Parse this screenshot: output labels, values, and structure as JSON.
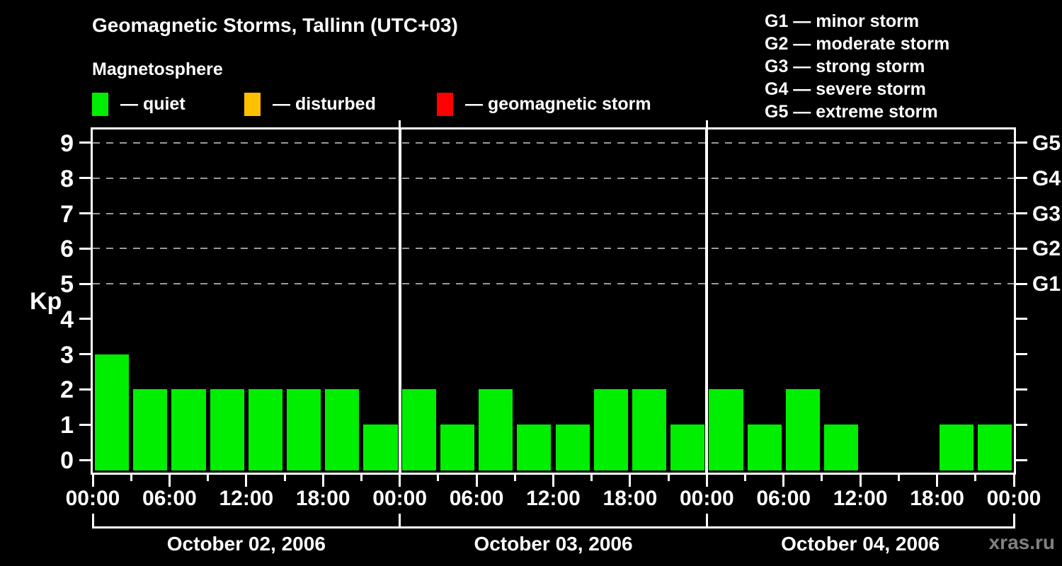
{
  "page": {
    "title": "Geomagnetic Storms, Tallinn (UTC+03)",
    "subtitle": "Magnetosphere",
    "watermark": "xras.ru"
  },
  "legend": {
    "items": [
      {
        "label": "— quiet",
        "color": "#00ee00"
      },
      {
        "label": "— disturbed",
        "color": "#ffc000"
      },
      {
        "label": "— geomagnetic storm",
        "color": "#ff0000"
      }
    ]
  },
  "gscale": {
    "items": [
      "G1 — minor storm",
      "G2 — moderate storm",
      "G3 — strong storm",
      "G4 — severe storm",
      "G5 — extreme storm"
    ]
  },
  "chart_data": {
    "type": "bar",
    "title": "Geomagnetic Storms, Tallinn (UTC+03)",
    "ylabel": "Kp",
    "ylim": [
      0,
      9
    ],
    "yticks": [
      0,
      1,
      2,
      3,
      4,
      5,
      6,
      7,
      8,
      9
    ],
    "grid_levels": [
      5,
      6,
      7,
      8,
      9
    ],
    "right_axis_labels": [
      {
        "level": 5,
        "label": "G1"
      },
      {
        "level": 6,
        "label": "G2"
      },
      {
        "level": 7,
        "label": "G3"
      },
      {
        "level": 8,
        "label": "G4"
      },
      {
        "level": 9,
        "label": "G5"
      }
    ],
    "hours_per_bar": 3,
    "x_tick_labels": [
      "00:00",
      "06:00",
      "12:00",
      "18:00",
      "00:00",
      "06:00",
      "12:00",
      "18:00",
      "00:00",
      "06:00",
      "12:00",
      "18:00",
      "00:00"
    ],
    "bar_color": "#00ee00",
    "grid_color": "#9a9a9a",
    "axis_color": "#ffffff",
    "watermark_color": "#808080",
    "days": [
      {
        "date": "October 02, 2006",
        "values": [
          3,
          2,
          2,
          2,
          2,
          2,
          2,
          1
        ]
      },
      {
        "date": "October 03, 2006",
        "values": [
          2,
          1,
          2,
          1,
          1,
          2,
          2,
          1
        ]
      },
      {
        "date": "October 04, 2006",
        "values": [
          2,
          1,
          2,
          1,
          0,
          0,
          1,
          1
        ]
      }
    ]
  }
}
